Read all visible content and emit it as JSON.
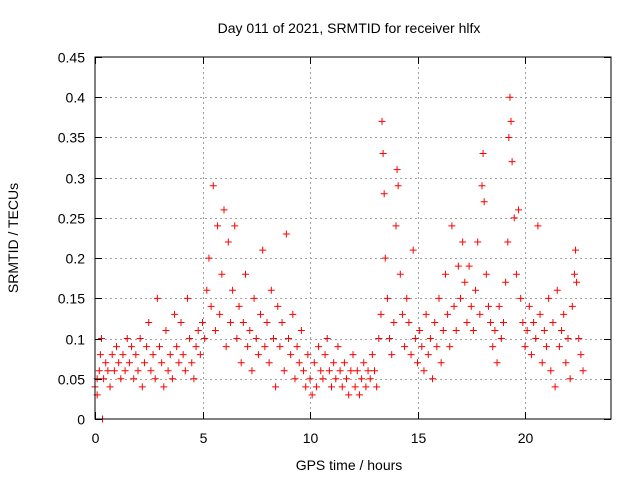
{
  "chart_data": {
    "type": "scatter",
    "title": "Day 011 of 2021, SRMTID for receiver hlfx",
    "xlabel": "GPS time / hours",
    "ylabel": "SRMTID / TECUs",
    "xlim": [
      0,
      24
    ],
    "ylim": [
      0,
      0.45
    ],
    "grid": true,
    "x_ticks": [
      {
        "value": 0,
        "label": "0"
      },
      {
        "value": 5,
        "label": "5"
      },
      {
        "value": 10,
        "label": "10"
      },
      {
        "value": 15,
        "label": "15"
      },
      {
        "value": 20,
        "label": "20"
      }
    ],
    "y_ticks": [
      {
        "value": 0,
        "label": "0"
      },
      {
        "value": 0.05,
        "label": "0.05"
      },
      {
        "value": 0.1,
        "label": "0.1"
      },
      {
        "value": 0.15,
        "label": "0.15"
      },
      {
        "value": 0.2,
        "label": "0.2"
      },
      {
        "value": 0.25,
        "label": "0.25"
      },
      {
        "value": 0.3,
        "label": "0.3"
      },
      {
        "value": 0.35,
        "label": "0.35"
      },
      {
        "value": 0.4,
        "label": "0.4"
      },
      {
        "value": 0.45,
        "label": "0.45"
      }
    ],
    "series": [
      {
        "name": "SRMTID",
        "marker": "+",
        "color": "#ff0000",
        "points": [
          [
            0.0,
            0.04
          ],
          [
            0.1,
            0.05
          ],
          [
            0.1,
            0.03
          ],
          [
            0.2,
            0.06
          ],
          [
            0.25,
            0.08
          ],
          [
            0.3,
            0.1
          ],
          [
            0.35,
            0.0
          ],
          [
            0.4,
            0.05
          ],
          [
            0.5,
            0.07
          ],
          [
            0.6,
            0.06
          ],
          [
            0.7,
            0.04
          ],
          [
            0.8,
            0.08
          ],
          [
            0.9,
            0.06
          ],
          [
            1.0,
            0.09
          ],
          [
            1.1,
            0.07
          ],
          [
            1.2,
            0.05
          ],
          [
            1.3,
            0.08
          ],
          [
            1.4,
            0.06
          ],
          [
            1.5,
            0.1
          ],
          [
            1.6,
            0.07
          ],
          [
            1.7,
            0.09
          ],
          [
            1.8,
            0.05
          ],
          [
            1.9,
            0.08
          ],
          [
            2.0,
            0.06
          ],
          [
            2.1,
            0.1
          ],
          [
            2.2,
            0.04
          ],
          [
            2.3,
            0.07
          ],
          [
            2.4,
            0.09
          ],
          [
            2.5,
            0.12
          ],
          [
            2.6,
            0.06
          ],
          [
            2.7,
            0.08
          ],
          [
            2.8,
            0.05
          ],
          [
            2.9,
            0.15
          ],
          [
            3.0,
            0.09
          ],
          [
            3.1,
            0.07
          ],
          [
            3.2,
            0.04
          ],
          [
            3.3,
            0.11
          ],
          [
            3.4,
            0.06
          ],
          [
            3.5,
            0.08
          ],
          [
            3.6,
            0.05
          ],
          [
            3.7,
            0.13
          ],
          [
            3.8,
            0.09
          ],
          [
            3.9,
            0.07
          ],
          [
            4.0,
            0.12
          ],
          [
            4.1,
            0.08
          ],
          [
            4.2,
            0.06
          ],
          [
            4.3,
            0.15
          ],
          [
            4.4,
            0.1
          ],
          [
            4.5,
            0.07
          ],
          [
            4.6,
            0.05
          ],
          [
            4.7,
            0.09
          ],
          [
            4.8,
            0.11
          ],
          [
            4.9,
            0.08
          ],
          [
            5.0,
            0.12
          ],
          [
            5.1,
            0.1
          ],
          [
            5.2,
            0.16
          ],
          [
            5.3,
            0.2
          ],
          [
            5.4,
            0.14
          ],
          [
            5.5,
            0.29
          ],
          [
            5.6,
            0.11
          ],
          [
            5.7,
            0.24
          ],
          [
            5.8,
            0.13
          ],
          [
            5.9,
            0.18
          ],
          [
            6.0,
            0.26
          ],
          [
            6.1,
            0.09
          ],
          [
            6.2,
            0.22
          ],
          [
            6.3,
            0.12
          ],
          [
            6.4,
            0.16
          ],
          [
            6.5,
            0.24
          ],
          [
            6.6,
            0.1
          ],
          [
            6.7,
            0.14
          ],
          [
            6.8,
            0.07
          ],
          [
            6.9,
            0.12
          ],
          [
            7.0,
            0.18
          ],
          [
            7.1,
            0.09
          ],
          [
            7.2,
            0.11
          ],
          [
            7.3,
            0.06
          ],
          [
            7.4,
            0.15
          ],
          [
            7.5,
            0.1
          ],
          [
            7.6,
            0.08
          ],
          [
            7.7,
            0.13
          ],
          [
            7.8,
            0.21
          ],
          [
            7.9,
            0.09
          ],
          [
            8.0,
            0.12
          ],
          [
            8.1,
            0.07
          ],
          [
            8.2,
            0.16
          ],
          [
            8.3,
            0.1
          ],
          [
            8.4,
            0.04
          ],
          [
            8.5,
            0.14
          ],
          [
            8.6,
            0.09
          ],
          [
            8.7,
            0.12
          ],
          [
            8.8,
            0.06
          ],
          [
            8.9,
            0.23
          ],
          [
            9.0,
            0.1
          ],
          [
            9.1,
            0.08
          ],
          [
            9.2,
            0.13
          ],
          [
            9.3,
            0.05
          ],
          [
            9.4,
            0.09
          ],
          [
            9.5,
            0.07
          ],
          [
            9.6,
            0.11
          ],
          [
            9.7,
            0.06
          ],
          [
            9.8,
            0.04
          ],
          [
            9.9,
            0.08
          ],
          [
            10.0,
            0.05
          ],
          [
            10.1,
            0.03
          ],
          [
            10.2,
            0.07
          ],
          [
            10.3,
            0.04
          ],
          [
            10.4,
            0.09
          ],
          [
            10.5,
            0.06
          ],
          [
            10.6,
            0.05
          ],
          [
            10.7,
            0.08
          ],
          [
            10.8,
            0.1
          ],
          [
            10.9,
            0.06
          ],
          [
            11.0,
            0.04
          ],
          [
            11.1,
            0.07
          ],
          [
            11.2,
            0.05
          ],
          [
            11.3,
            0.09
          ],
          [
            11.4,
            0.06
          ],
          [
            11.5,
            0.04
          ],
          [
            11.6,
            0.07
          ],
          [
            11.7,
            0.05
          ],
          [
            11.8,
            0.03
          ],
          [
            11.9,
            0.06
          ],
          [
            12.0,
            0.08
          ],
          [
            12.1,
            0.04
          ],
          [
            12.2,
            0.06
          ],
          [
            12.3,
            0.03
          ],
          [
            12.4,
            0.05
          ],
          [
            12.5,
            0.07
          ],
          [
            12.6,
            0.04
          ],
          [
            12.7,
            0.06
          ],
          [
            12.8,
            0.05
          ],
          [
            12.9,
            0.08
          ],
          [
            13.0,
            0.06
          ],
          [
            13.1,
            0.04
          ],
          [
            13.2,
            0.1
          ],
          [
            13.3,
            0.13
          ],
          [
            13.35,
            0.37
          ],
          [
            13.4,
            0.33
          ],
          [
            13.45,
            0.28
          ],
          [
            13.5,
            0.2
          ],
          [
            13.6,
            0.15
          ],
          [
            13.7,
            0.1
          ],
          [
            13.8,
            0.08
          ],
          [
            13.9,
            0.12
          ],
          [
            14.0,
            0.24
          ],
          [
            14.05,
            0.31
          ],
          [
            14.1,
            0.29
          ],
          [
            14.2,
            0.18
          ],
          [
            14.3,
            0.13
          ],
          [
            14.4,
            0.09
          ],
          [
            14.5,
            0.15
          ],
          [
            14.6,
            0.12
          ],
          [
            14.7,
            0.08
          ],
          [
            14.8,
            0.21
          ],
          [
            14.9,
            0.1
          ],
          [
            15.0,
            0.07
          ],
          [
            15.1,
            0.11
          ],
          [
            15.2,
            0.09
          ],
          [
            15.3,
            0.06
          ],
          [
            15.4,
            0.13
          ],
          [
            15.5,
            0.08
          ],
          [
            15.6,
            0.1
          ],
          [
            15.7,
            0.05
          ],
          [
            15.8,
            0.12
          ],
          [
            15.9,
            0.09
          ],
          [
            16.0,
            0.15
          ],
          [
            16.1,
            0.07
          ],
          [
            16.2,
            0.11
          ],
          [
            16.3,
            0.18
          ],
          [
            16.4,
            0.13
          ],
          [
            16.5,
            0.09
          ],
          [
            16.6,
            0.24
          ],
          [
            16.7,
            0.14
          ],
          [
            16.8,
            0.11
          ],
          [
            16.9,
            0.19
          ],
          [
            17.0,
            0.15
          ],
          [
            17.1,
            0.22
          ],
          [
            17.2,
            0.17
          ],
          [
            17.3,
            0.12
          ],
          [
            17.4,
            0.19
          ],
          [
            17.5,
            0.14
          ],
          [
            17.6,
            0.11
          ],
          [
            17.7,
            0.16
          ],
          [
            17.8,
            0.22
          ],
          [
            17.9,
            0.13
          ],
          [
            18.0,
            0.29
          ],
          [
            18.05,
            0.33
          ],
          [
            18.1,
            0.27
          ],
          [
            18.2,
            0.18
          ],
          [
            18.3,
            0.14
          ],
          [
            18.4,
            0.12
          ],
          [
            18.5,
            0.09
          ],
          [
            18.6,
            0.11
          ],
          [
            18.7,
            0.07
          ],
          [
            18.8,
            0.14
          ],
          [
            18.9,
            0.1
          ],
          [
            19.0,
            0.12
          ],
          [
            19.1,
            0.17
          ],
          [
            19.2,
            0.22
          ],
          [
            19.25,
            0.35
          ],
          [
            19.3,
            0.4
          ],
          [
            19.35,
            0.37
          ],
          [
            19.4,
            0.32
          ],
          [
            19.5,
            0.25
          ],
          [
            19.6,
            0.18
          ],
          [
            19.7,
            0.26
          ],
          [
            19.8,
            0.15
          ],
          [
            19.9,
            0.12
          ],
          [
            20.0,
            0.09
          ],
          [
            20.1,
            0.11
          ],
          [
            20.2,
            0.14
          ],
          [
            20.3,
            0.08
          ],
          [
            20.4,
            0.12
          ],
          [
            20.5,
            0.1
          ],
          [
            20.6,
            0.24
          ],
          [
            20.7,
            0.13
          ],
          [
            20.8,
            0.07
          ],
          [
            20.9,
            0.11
          ],
          [
            21.0,
            0.09
          ],
          [
            21.1,
            0.15
          ],
          [
            21.2,
            0.06
          ],
          [
            21.3,
            0.12
          ],
          [
            21.4,
            0.04
          ],
          [
            21.5,
            0.16
          ],
          [
            21.6,
            0.09
          ],
          [
            21.7,
            0.11
          ],
          [
            21.8,
            0.13
          ],
          [
            21.9,
            0.07
          ],
          [
            22.0,
            0.1
          ],
          [
            22.1,
            0.05
          ],
          [
            22.2,
            0.14
          ],
          [
            22.3,
            0.18
          ],
          [
            22.35,
            0.21
          ],
          [
            22.4,
            0.17
          ],
          [
            22.5,
            0.1
          ],
          [
            22.6,
            0.08
          ],
          [
            22.7,
            0.06
          ]
        ]
      }
    ]
  }
}
